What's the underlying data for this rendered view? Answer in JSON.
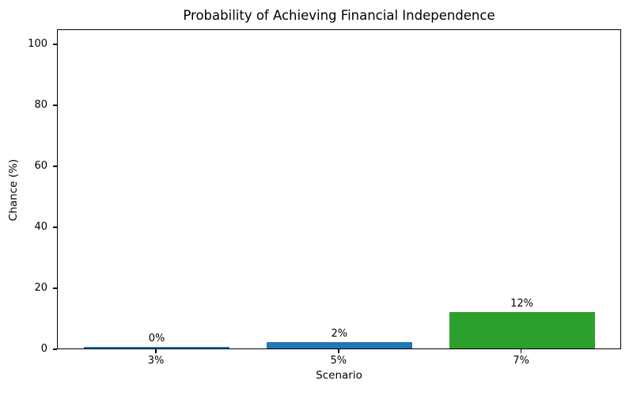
{
  "chart_data": {
    "type": "bar",
    "title": "Probability of Achieving Financial Independence",
    "xlabel": "Scenario",
    "ylabel": "Chance (%)",
    "categories": [
      "3%",
      "5%",
      "7%"
    ],
    "values": [
      0,
      2,
      12
    ],
    "bar_labels": [
      "0%",
      "2%",
      "12%"
    ],
    "bar_colors": [
      "#1f77b4",
      "#1f77b4",
      "#2ca02c"
    ],
    "yticks": [
      0,
      20,
      40,
      60,
      80,
      100
    ],
    "ylim": [
      0,
      105
    ],
    "grid": false,
    "legend_position": "none",
    "background_color": "#ffffff",
    "axis_color": "#000000"
  }
}
